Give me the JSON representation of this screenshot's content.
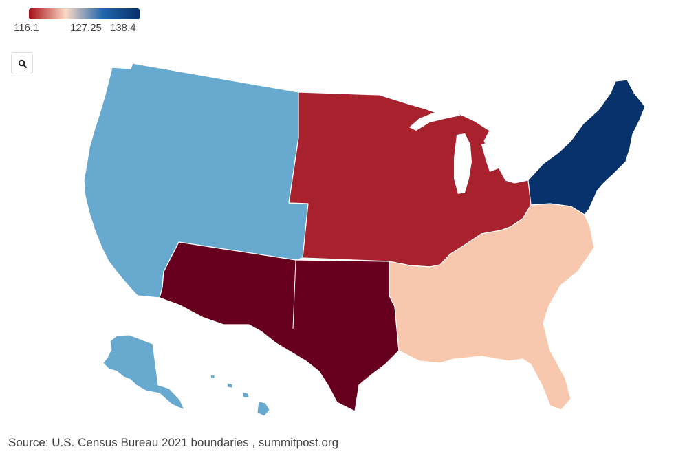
{
  "legend": {
    "min_label": "116.1",
    "mid_label": "127.25",
    "max_label": "138.4",
    "colors": [
      "#a50f15",
      "#fbd9c6",
      "#2166ac",
      "#08306b"
    ]
  },
  "toolbar": {
    "zoom_icon": "search-icon"
  },
  "map": {
    "colors": {
      "west": "#67a9cf",
      "midwest": "#a8222e",
      "southwest": "#67001f",
      "southeast": "#f8c8ae",
      "northeast": "#08326b"
    }
  },
  "footer": {
    "source_text": "Source: U.S. Census Bureau 2021 boundaries , summitpost.org"
  }
}
